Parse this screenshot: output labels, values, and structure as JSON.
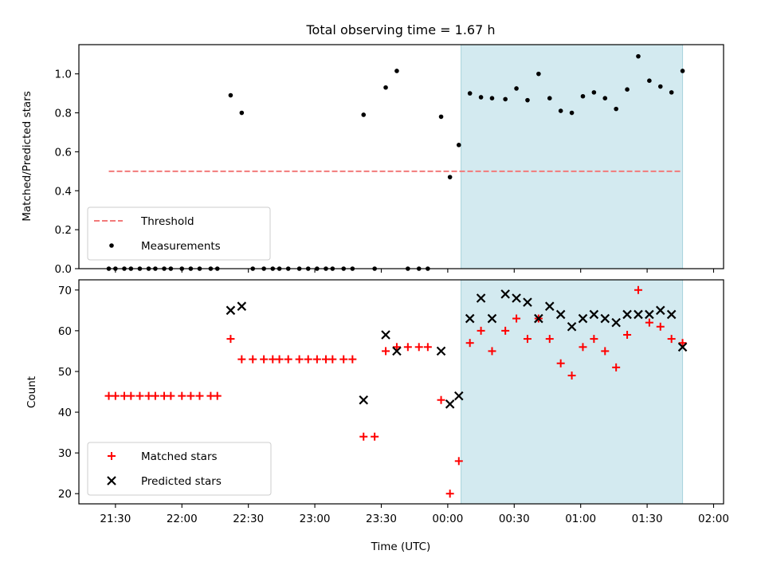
{
  "title": "Total observing time = 1.67 h",
  "colors": {
    "shade": "#d3eaf0",
    "shade_edge": "#a8d3dd",
    "threshold": "#f27a7a",
    "measurement": "#000000",
    "matched": "#ff0000",
    "predicted": "#000000"
  },
  "chart_data": [
    {
      "type": "scatter",
      "ylabel": "Matched/Predicted stars",
      "xlabel": "",
      "ylim": [
        0,
        1.15
      ],
      "yticks": [
        0.0,
        0.2,
        0.4,
        0.6,
        0.8,
        1.0
      ],
      "ytick_labels": [
        "0.0",
        "0.2",
        "0.4",
        "0.6",
        "0.8",
        "1.0"
      ],
      "legend_position": "lower-left",
      "shaded_region": {
        "from": "00:06",
        "to": "01:46"
      },
      "threshold": {
        "name": "Threshold",
        "value": 0.5,
        "from": "21:27",
        "to": "01:46"
      },
      "series": [
        {
          "name": "Measurements",
          "x": [
            "21:27",
            "21:30",
            "21:34",
            "21:37",
            "21:41",
            "21:45",
            "21:48",
            "21:52",
            "21:55",
            "22:00",
            "22:04",
            "22:08",
            "22:13",
            "22:16",
            "22:22",
            "22:27",
            "22:32",
            "22:37",
            "22:41",
            "22:44",
            "22:48",
            "22:53",
            "22:57",
            "23:01",
            "23:05",
            "23:08",
            "23:13",
            "23:17",
            "23:22",
            "23:27",
            "23:32",
            "23:37",
            "23:42",
            "23:47",
            "23:51",
            "23:57",
            "24:01",
            "24:05",
            "24:10",
            "24:15",
            "24:20",
            "24:26",
            "24:31",
            "24:36",
            "24:41",
            "24:46",
            "24:51",
            "24:56",
            "25:01",
            "25:06",
            "25:11",
            "25:16",
            "25:21",
            "25:26",
            "25:31",
            "25:36",
            "25:41",
            "25:46"
          ],
          "y": [
            0,
            0,
            0,
            0,
            0,
            0,
            0,
            0,
            0,
            0,
            0,
            0,
            0,
            0,
            0.89,
            0.8,
            0,
            0,
            0,
            0,
            0,
            0,
            0,
            0,
            0,
            0,
            0,
            0,
            0.79,
            0,
            0.93,
            1.015,
            0,
            0,
            0,
            0.78,
            0.47,
            0.635,
            0.9,
            0.88,
            0.875,
            0.87,
            0.925,
            0.865,
            1.0,
            0.875,
            0.81,
            0.8,
            0.885,
            0.905,
            0.875,
            0.82,
            0.92,
            1.09,
            0.965,
            0.935,
            0.905,
            1.015
          ]
        }
      ]
    },
    {
      "type": "scatter",
      "ylabel": "Count",
      "xlabel": "Time (UTC)",
      "ylim": [
        17.5,
        72.5
      ],
      "yticks": [
        20,
        30,
        40,
        50,
        60,
        70
      ],
      "ytick_labels": [
        "20",
        "30",
        "40",
        "50",
        "60",
        "70"
      ],
      "xticks": [
        "21:30",
        "22:00",
        "22:30",
        "23:00",
        "23:30",
        "00:00",
        "00:30",
        "01:00",
        "01:30",
        "02:00"
      ],
      "legend_position": "lower-left",
      "shaded_region": {
        "from": "00:06",
        "to": "01:46"
      },
      "series": [
        {
          "name": "Matched stars",
          "x": [
            "21:27",
            "21:30",
            "21:34",
            "21:37",
            "21:41",
            "21:45",
            "21:48",
            "21:52",
            "21:55",
            "22:00",
            "22:04",
            "22:08",
            "22:13",
            "22:16",
            "22:22",
            "22:27",
            "22:32",
            "22:37",
            "22:41",
            "22:44",
            "22:48",
            "22:53",
            "22:57",
            "23:01",
            "23:05",
            "23:08",
            "23:13",
            "23:17",
            "23:22",
            "23:27",
            "23:32",
            "23:37",
            "23:42",
            "23:47",
            "23:51",
            "23:57",
            "24:01",
            "24:05",
            "24:10",
            "24:15",
            "24:20",
            "24:26",
            "24:31",
            "24:36",
            "24:41",
            "24:46",
            "24:51",
            "24:56",
            "25:01",
            "25:06",
            "25:11",
            "25:16",
            "25:21",
            "25:26",
            "25:31",
            "25:36",
            "25:41",
            "25:46"
          ],
          "y": [
            44,
            44,
            44,
            44,
            44,
            44,
            44,
            44,
            44,
            44,
            44,
            44,
            44,
            44,
            58,
            53,
            53,
            53,
            53,
            53,
            53,
            53,
            53,
            53,
            53,
            53,
            53,
            53,
            34,
            34,
            55,
            56,
            56,
            56,
            56,
            43,
            20,
            28,
            57,
            60,
            55,
            60,
            63,
            58,
            63,
            58,
            52,
            49,
            56,
            58,
            55,
            51,
            59,
            70,
            62,
            61,
            58,
            57
          ]
        },
        {
          "name": "Predicted stars",
          "x": [
            "22:22",
            "22:27",
            "23:22",
            "23:32",
            "23:37",
            "23:57",
            "24:01",
            "24:05",
            "24:10",
            "24:15",
            "24:20",
            "24:26",
            "24:31",
            "24:36",
            "24:41",
            "24:46",
            "24:51",
            "24:56",
            "25:01",
            "25:06",
            "25:11",
            "25:16",
            "25:21",
            "25:26",
            "25:31",
            "25:36",
            "25:41",
            "25:46"
          ],
          "y": [
            65,
            66,
            43,
            59,
            55,
            55,
            42,
            44,
            63,
            68,
            63,
            69,
            68,
            67,
            63,
            66,
            64,
            61,
            63,
            64,
            63,
            62,
            64,
            64,
            64,
            65,
            64,
            56
          ]
        }
      ]
    }
  ]
}
